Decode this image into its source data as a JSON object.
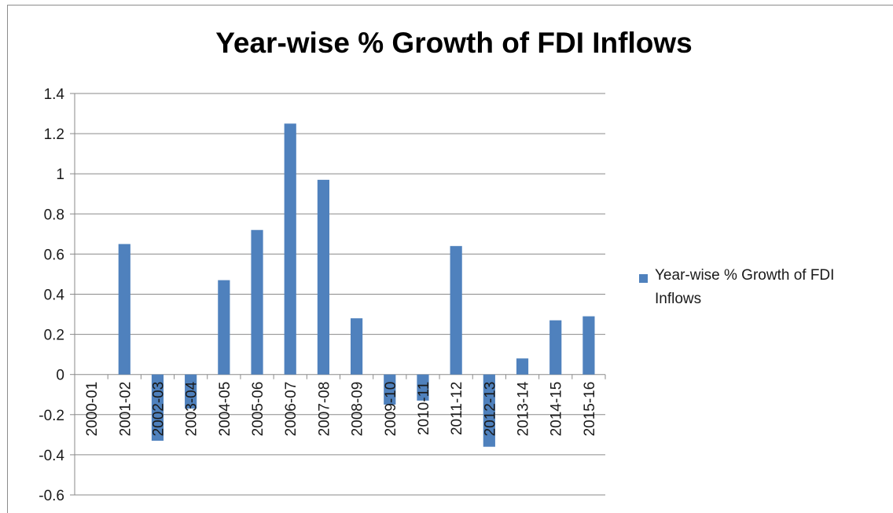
{
  "chart_data": {
    "type": "bar",
    "title": "Year-wise % Growth of FDI Inflows",
    "xlabel": "",
    "ylabel": "",
    "categories": [
      "2000-01",
      "2001-02",
      "2002-03",
      "2003-04",
      "2004-05",
      "2005-06",
      "2006-07",
      "2007-08",
      "2008-09",
      "2009-10",
      "2010-11",
      "2011-12",
      "2012-13",
      "2013-14",
      "2014-15",
      "2015-16"
    ],
    "series": [
      {
        "name": "Year-wise % Growth of FDI Inflows",
        "values": [
          0,
          0.65,
          -0.33,
          -0.17,
          0.47,
          0.72,
          1.25,
          0.97,
          0.28,
          -0.15,
          -0.13,
          0.64,
          -0.36,
          0.08,
          0.27,
          0.29
        ],
        "color": "#4f81bd"
      }
    ],
    "ylim": [
      -0.6,
      1.4
    ],
    "yticks": [
      "1.4",
      "1.2",
      "1",
      "0.8",
      "0.6",
      "0.4",
      "0.2",
      "0",
      "-0.2",
      "-0.4",
      "-0.6"
    ],
    "grid": true,
    "legend_position": "right"
  }
}
